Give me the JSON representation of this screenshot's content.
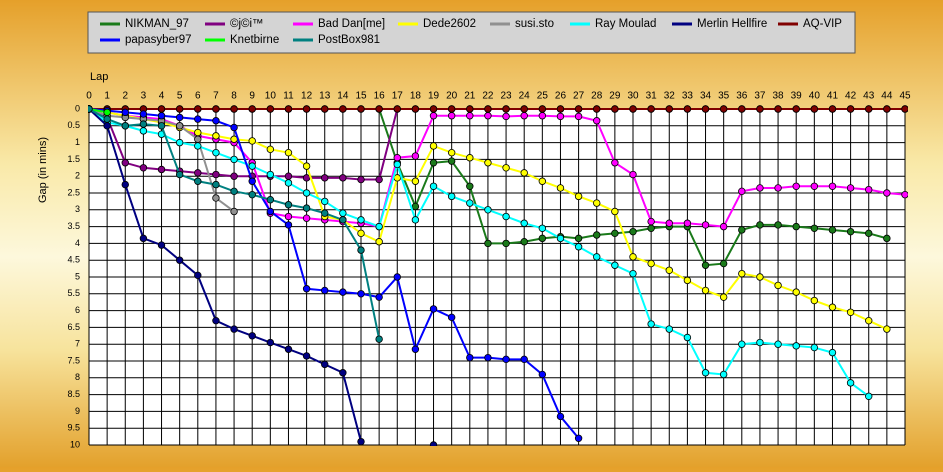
{
  "chart_data": {
    "type": "line",
    "x_label": "Lap",
    "y_label": "Gap (in mins)",
    "x": [
      0,
      1,
      2,
      3,
      4,
      5,
      6,
      7,
      8,
      9,
      10,
      11,
      12,
      13,
      14,
      15,
      16,
      17,
      18,
      19,
      20,
      21,
      22,
      23,
      24,
      25,
      26,
      27,
      28,
      29,
      30,
      31,
      32,
      33,
      34,
      35,
      36,
      37,
      38,
      39,
      40,
      41,
      42,
      43,
      44,
      45
    ],
    "xlim": [
      0,
      45
    ],
    "xticks": [
      0,
      1,
      2,
      3,
      4,
      5,
      6,
      7,
      8,
      9,
      10,
      11,
      12,
      13,
      14,
      15,
      16,
      17,
      18,
      19,
      20,
      21,
      22,
      23,
      24,
      25,
      26,
      27,
      28,
      29,
      30,
      31,
      32,
      33,
      34,
      35,
      36,
      37,
      38,
      39,
      40,
      41,
      42,
      43,
      44,
      45
    ],
    "ylim": [
      0,
      10
    ],
    "y_inverted": true,
    "yticks": [
      0,
      0.5,
      1,
      1.5,
      2,
      2.5,
      3,
      3.5,
      4,
      4.5,
      5,
      5.5,
      6,
      6.5,
      7,
      7.5,
      8,
      8.5,
      9,
      9.5,
      10
    ],
    "grid": true,
    "series": [
      {
        "name": "NIKMAN_97",
        "color": "#1a7a1a",
        "values": [
          0,
          0,
          0,
          0,
          0,
          0,
          0,
          0,
          0,
          0,
          0,
          0,
          0,
          0,
          0,
          0,
          0,
          1.6,
          2.9,
          1.6,
          1.55,
          2.3,
          4.0,
          4.0,
          3.95,
          3.85,
          3.8,
          3.85,
          3.75,
          3.7,
          3.65,
          3.55,
          3.5,
          3.5,
          4.65,
          4.6,
          3.6,
          3.45,
          3.45,
          3.5,
          3.55,
          3.6,
          3.65,
          3.7,
          3.85,
          null
        ]
      },
      {
        "name": "©j©i™",
        "color": "#800080",
        "values": [
          0,
          0.25,
          1.6,
          1.75,
          1.8,
          1.85,
          1.9,
          1.95,
          2.0,
          2.0,
          2.0,
          2.0,
          2.05,
          2.05,
          2.05,
          2.1,
          2.1,
          0,
          0,
          0,
          0,
          0,
          0,
          0,
          0,
          0,
          0,
          0,
          0,
          0,
          0,
          0,
          0,
          0,
          0,
          0,
          0,
          0,
          0,
          0,
          0,
          0,
          0,
          0,
          0,
          0
        ]
      },
      {
        "name": "Bad Dan[me]",
        "color": "#ff00ff",
        "values": [
          0,
          0.1,
          0.2,
          0.25,
          0.3,
          0.5,
          0.8,
          0.9,
          1.0,
          1.6,
          3.1,
          3.2,
          3.25,
          3.3,
          3.35,
          3.4,
          3.5,
          1.45,
          1.4,
          0.2,
          0.2,
          0.2,
          0.2,
          0.22,
          0.2,
          0.2,
          0.22,
          0.22,
          0.35,
          1.6,
          1.95,
          3.35,
          3.4,
          3.4,
          3.45,
          3.5,
          2.45,
          2.35,
          2.35,
          2.3,
          2.3,
          2.3,
          2.35,
          2.4,
          2.5,
          2.55
        ]
      },
      {
        "name": "Dede2602",
        "color": "#ffff00",
        "values": [
          0,
          0.1,
          0.2,
          0.3,
          0.4,
          0.55,
          0.7,
          0.8,
          0.9,
          0.95,
          1.2,
          1.3,
          1.7,
          3.2,
          3.3,
          3.7,
          3.95,
          2.05,
          2.15,
          1.1,
          1.3,
          1.45,
          1.6,
          1.75,
          1.9,
          2.15,
          2.35,
          2.6,
          2.8,
          3.05,
          4.4,
          4.6,
          4.8,
          5.1,
          5.4,
          5.6,
          4.9,
          5.0,
          5.25,
          5.45,
          5.7,
          5.9,
          6.05,
          6.3,
          6.55,
          null
        ]
      },
      {
        "name": "susi.sto",
        "color": "#909090",
        "values": [
          0,
          0.2,
          0.25,
          0.3,
          0.35,
          0.5,
          0.9,
          2.65,
          3.05,
          null,
          null,
          null,
          null,
          null,
          null,
          null,
          null,
          null,
          null,
          null,
          null,
          null,
          null,
          null,
          null,
          null,
          null,
          null,
          null,
          null,
          null,
          null,
          null,
          null,
          null,
          null,
          null,
          null,
          null,
          null,
          null,
          null,
          null,
          null,
          null,
          null
        ]
      },
      {
        "name": "Ray Moulad",
        "color": "#00ffff",
        "values": [
          0,
          0.4,
          0.5,
          0.65,
          0.75,
          1.0,
          1.1,
          1.3,
          1.5,
          1.7,
          1.95,
          2.2,
          2.5,
          2.75,
          3.1,
          3.3,
          3.5,
          1.65,
          3.3,
          2.3,
          2.6,
          2.8,
          3.0,
          3.2,
          3.4,
          3.55,
          3.85,
          4.1,
          4.4,
          4.65,
          4.9,
          6.4,
          6.55,
          6.8,
          7.85,
          7.9,
          7.0,
          6.95,
          7.0,
          7.05,
          7.1,
          7.25,
          8.15,
          8.55,
          null,
          null
        ]
      },
      {
        "name": "Merlin Hellfire",
        "color": "#000080",
        "values": [
          0,
          0.5,
          2.25,
          3.85,
          4.05,
          4.5,
          4.95,
          6.3,
          6.55,
          6.75,
          6.95,
          7.15,
          7.35,
          7.6,
          7.85,
          9.9,
          null,
          null,
          null,
          10,
          null,
          null,
          null,
          null,
          null,
          null,
          null,
          null,
          null,
          null,
          null,
          null,
          null,
          null,
          null,
          null,
          null,
          null,
          null,
          null,
          null,
          null,
          null,
          null,
          null,
          null
        ]
      },
      {
        "name": "AQ-VIP",
        "color": "#800000",
        "values": [
          0,
          0,
          0,
          0,
          0,
          0,
          0,
          0,
          0,
          0,
          0,
          0,
          0,
          0,
          0,
          0,
          0,
          0,
          0,
          0,
          0,
          0,
          0,
          0,
          0,
          0,
          0,
          0,
          0,
          0,
          0,
          0,
          0,
          0,
          0,
          0,
          0,
          0,
          0,
          0,
          0,
          0,
          0,
          0,
          0,
          0
        ]
      },
      {
        "name": "papasyber97",
        "color": "#0000ff",
        "values": [
          0,
          0.05,
          0.1,
          0.15,
          0.2,
          0.25,
          0.3,
          0.35,
          0.55,
          2.15,
          3.05,
          3.45,
          5.35,
          5.4,
          5.45,
          5.5,
          5.6,
          5.0,
          7.15,
          5.95,
          6.2,
          7.4,
          7.4,
          7.45,
          7.45,
          7.9,
          9.15,
          9.8,
          null,
          null,
          null,
          null,
          null,
          null,
          null,
          null,
          null,
          null,
          null,
          null,
          null,
          null,
          null,
          null,
          null,
          null
        ]
      },
      {
        "name": "Knetbirne",
        "color": "#00ff00",
        "values": [
          0,
          0.1,
          null,
          null,
          null,
          null,
          null,
          null,
          null,
          null,
          null,
          null,
          null,
          null,
          null,
          null,
          null,
          null,
          null,
          null,
          null,
          null,
          null,
          null,
          null,
          null,
          null,
          null,
          null,
          null,
          null,
          null,
          null,
          null,
          null,
          null,
          null,
          null,
          null,
          null,
          null,
          null,
          null,
          null,
          null,
          null
        ]
      },
      {
        "name": "PostBox981",
        "color": "#008080",
        "values": [
          0,
          0.3,
          0.5,
          0.45,
          0.5,
          1.95,
          2.15,
          2.25,
          2.45,
          2.55,
          2.7,
          2.85,
          2.95,
          3.1,
          3.3,
          4.2,
          6.85,
          null,
          null,
          null,
          null,
          null,
          null,
          null,
          null,
          null,
          null,
          null,
          null,
          null,
          null,
          null,
          null,
          null,
          null,
          null,
          null,
          null,
          null,
          null,
          null,
          null,
          null,
          null,
          null,
          null
        ]
      }
    ]
  }
}
